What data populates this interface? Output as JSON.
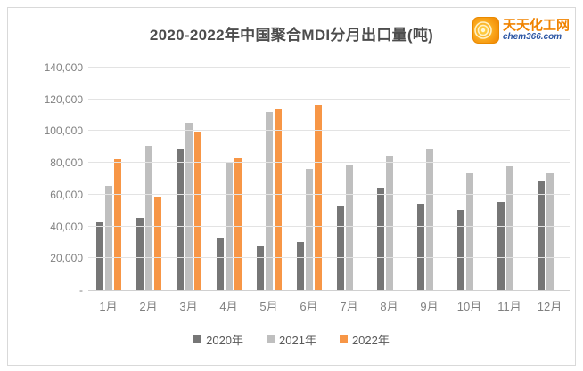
{
  "header": {
    "title": "2020-2022年中国聚合MDI分月出口量(吨)",
    "logo": {
      "icon": "swirl-rings-icon",
      "name": "天天化工网",
      "domain": "chem366.com",
      "icon_color": "#f7941d",
      "name_color": "#f08300",
      "domain_color": "#2b55a3"
    }
  },
  "chart_data": {
    "type": "bar",
    "title": "2020-2022年中国聚合MDI分月出口量(吨)",
    "categories": [
      "1月",
      "2月",
      "3月",
      "4月",
      "5月",
      "6月",
      "7月",
      "8月",
      "9月",
      "10月",
      "11月",
      "12月"
    ],
    "series": [
      {
        "name": "2020年",
        "color": "#767676",
        "values": [
          43200,
          45200,
          88400,
          32800,
          27800,
          30100,
          52700,
          64200,
          54100,
          50400,
          55200,
          68700
        ]
      },
      {
        "name": "2021年",
        "color": "#bfbfbf",
        "values": [
          65500,
          90600,
          105100,
          80900,
          112000,
          76300,
          78300,
          84700,
          89000,
          73300,
          77800,
          73700
        ]
      },
      {
        "name": "2022年",
        "color": "#f79646",
        "values": [
          82600,
          58600,
          99800,
          82800,
          113900,
          116300,
          null,
          null,
          null,
          null,
          null,
          null
        ]
      }
    ],
    "xlabel": "",
    "ylabel": "",
    "ylim": [
      0,
      140000
    ],
    "ytick_step": 20000,
    "ytick_labels": [
      "-",
      "20,000",
      "40,000",
      "60,000",
      "80,000",
      "100,000",
      "120,000",
      "140,000"
    ],
    "grid": true,
    "gridline_color": "#e3e3e3",
    "legend_position": "bottom"
  }
}
